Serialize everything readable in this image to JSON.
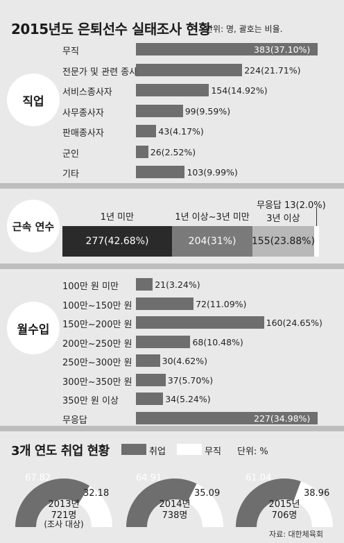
{
  "header": {
    "title": "2015년도 은퇴선수 실태조사 현황",
    "unit": "단위: 명, 괄호는 비율."
  },
  "colors": {
    "bar": "#6e6e6e",
    "dark": "#2a2a2a",
    "mid": "#7a7a7a",
    "light": "#b8b8b8",
    "white": "#ffffff"
  },
  "sections": {
    "occupation_label": "직업",
    "tenure_label": "근속 연수",
    "income_label": "월수입",
    "employment_title": "3개 연도 취업 현황"
  },
  "legend": {
    "employed": "취업",
    "unemployed": "무직",
    "unit": "단위: %"
  },
  "credit": "자료: 대한체육회",
  "chart_data": [
    {
      "type": "bar",
      "orientation": "horizontal",
      "name": "직업",
      "categories": [
        "무직",
        "전문가 및 관련 종사자",
        "서비스종사자",
        "사무종사자",
        "판매종사자",
        "군인",
        "기타"
      ],
      "values": [
        383,
        224,
        154,
        99,
        43,
        26,
        103
      ],
      "percents": [
        37.1,
        21.71,
        14.92,
        9.59,
        4.17,
        2.52,
        9.99
      ],
      "labels": [
        "383(37.10%)",
        "224(21.71%)",
        "154(14.92%)",
        "99(9.59%)",
        "43(4.17%)",
        "26(2.52%)",
        "103(9.99%)"
      ],
      "xlim": [
        0,
        383
      ]
    },
    {
      "type": "bar",
      "orientation": "stacked",
      "name": "근속 연수",
      "categories": [
        "1년 미만",
        "1년 이상~3년 미만",
        "3년 이상",
        "무응답"
      ],
      "values": [
        277,
        204,
        155,
        13
      ],
      "percents": [
        42.68,
        31,
        23.88,
        2.0
      ],
      "labels": [
        "277(42.68%)",
        "204(31%)",
        "155(23.88%)",
        "13(2.0%)"
      ],
      "header_labels": [
        "1년 미만",
        "1년 이상~3년 미만",
        "3년 이상",
        "무응답 13(2.0%)"
      ]
    },
    {
      "type": "bar",
      "orientation": "horizontal",
      "name": "월수입",
      "categories": [
        "100만 원 미만",
        "100만~150만 원",
        "150만~200만 원",
        "200만~250만 원",
        "250만~300만 원",
        "300만~350만 원",
        "350만 원 이상",
        "무응답"
      ],
      "values": [
        21,
        72,
        160,
        68,
        30,
        37,
        34,
        227
      ],
      "percents": [
        3.24,
        11.09,
        24.65,
        10.48,
        4.62,
        5.7,
        5.24,
        34.98
      ],
      "labels": [
        "21(3.24%)",
        "72(11.09%)",
        "160(24.65%)",
        "68(10.48%)",
        "30(4.62%)",
        "37(5.70%)",
        "34(5.24%)",
        "227(34.98%)"
      ],
      "xlim": [
        0,
        227
      ]
    },
    {
      "type": "pie",
      "style": "half-donut",
      "name": "3개 연도 취업 현황",
      "series": [
        {
          "year": "2013년",
          "count": "721명",
          "note": "(조사 대상)",
          "employed": 67.82,
          "unemployed": 32.18
        },
        {
          "year": "2014년",
          "count": "738명",
          "note": "",
          "employed": 64.91,
          "unemployed": 35.09
        },
        {
          "year": "2015년",
          "count": "706명",
          "note": "",
          "employed": 61.04,
          "unemployed": 38.96
        }
      ]
    }
  ]
}
